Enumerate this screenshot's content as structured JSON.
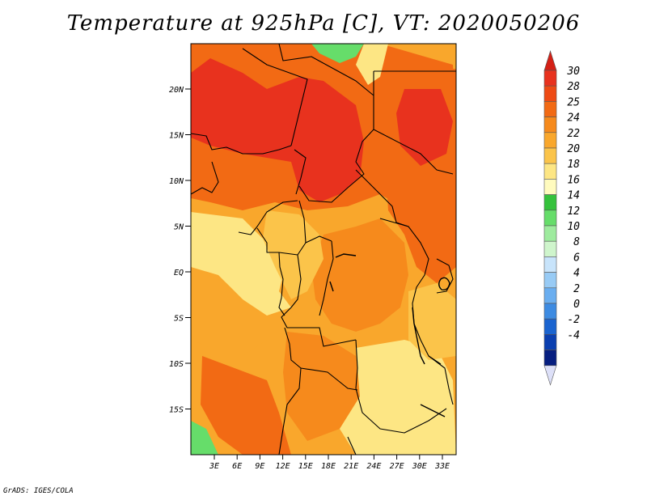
{
  "title": "Temperature at 925hPa [C], VT: 2020050206",
  "credit": "GrADS: IGES/COLA",
  "map": {
    "lat_labels": [
      "20N",
      "15N",
      "10N",
      "5N",
      "EQ",
      "5S",
      "10S",
      "15S"
    ],
    "lon_labels": [
      "3E",
      "6E",
      "9E",
      "12E",
      "15E",
      "18E",
      "21E",
      "24E",
      "27E",
      "30E",
      "33E"
    ]
  },
  "colorbar": {
    "labels": [
      "30",
      "28",
      "25",
      "24",
      "22",
      "20",
      "18",
      "16",
      "14",
      "12",
      "10",
      "8",
      "6",
      "4",
      "2",
      "0",
      "-2",
      "-4"
    ],
    "colors": [
      "#e8321e",
      "#ee4a14",
      "#f26a14",
      "#f68a1c",
      "#f9a72c",
      "#fbc44a",
      "#fde684",
      "#fffbbe",
      "#35c23c",
      "#66dd6a",
      "#9eeb9e",
      "#cff5cc",
      "#c8e4fb",
      "#98cbf5",
      "#6aaef0",
      "#3d8be2",
      "#1a64d0",
      "#0a3fb0",
      "#061e80"
    ],
    "top_cap": "#d42016",
    "bottom_cap": "#dde0f8"
  }
}
